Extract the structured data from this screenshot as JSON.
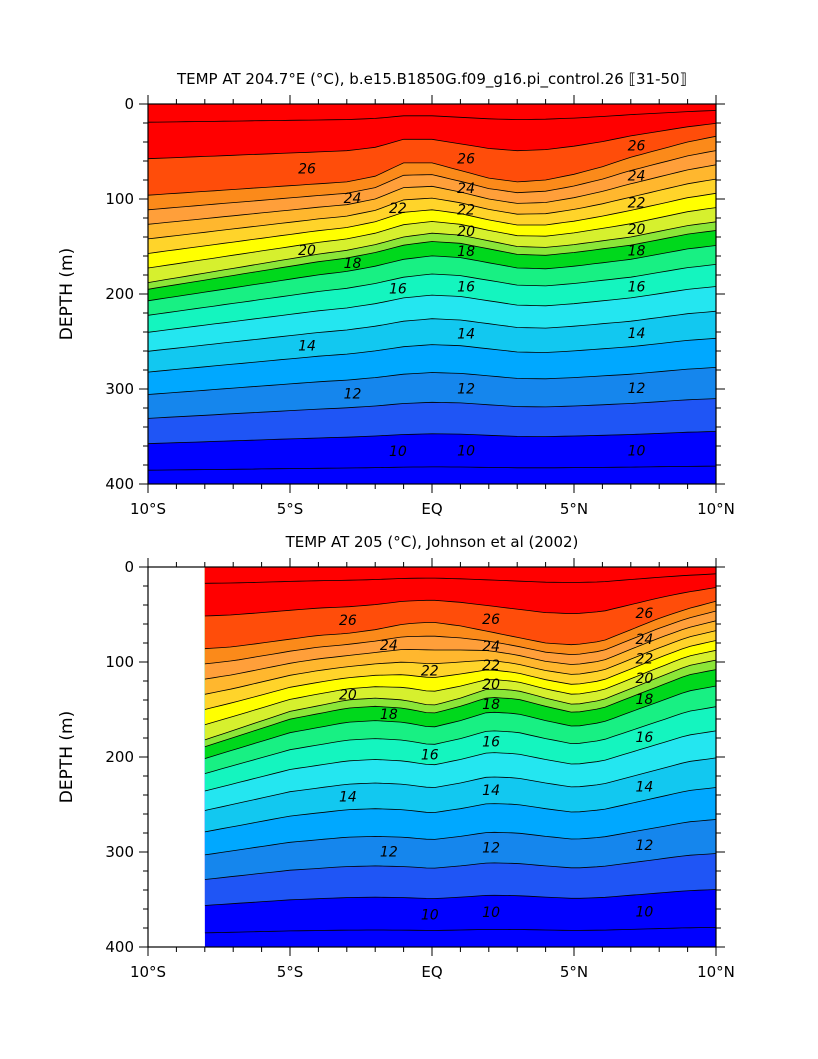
{
  "chart_data": [
    {
      "type": "contour",
      "title": "TEMP AT 204.7°E (°C), b.e15.B1850G.f09_g16.pi_control.26 ⟦31-50⟧",
      "xlabel": "",
      "ylabel": "DEPTH (m)",
      "x_tick_labels": [
        "10°S",
        "5°S",
        "EQ",
        "5°N",
        "10°N"
      ],
      "y_tick_labels": [
        "0",
        "100",
        "200",
        "300",
        "400"
      ],
      "xlim": [
        -10,
        10
      ],
      "ylim": [
        0,
        400
      ],
      "y_inverted": true,
      "contour_interval": 1,
      "contour_labels": [
        "26",
        "24",
        "22",
        "20",
        "18",
        "16",
        "14",
        "12",
        "10"
      ],
      "colormap": [
        "#0000ff",
        "#1f55f5",
        "#1586ed",
        "#00a8ff",
        "#12c8f0",
        "#24e6f0",
        "#14f5bf",
        "#18f083",
        "#00d81c",
        "#8be638",
        "#d6f02e",
        "#ffff00",
        "#ffd42a",
        "#ffb72e",
        "#ff9f3a",
        "#fb8a1a",
        "#ff4d0a",
        "#ff0000"
      ],
      "profile": {
        "x": [
          -10,
          -9,
          -8,
          -7,
          -6,
          -5,
          -4,
          -3,
          -2,
          -1,
          0,
          1,
          2,
          3,
          4,
          5,
          6,
          7,
          8,
          9,
          10
        ],
        "thermocline_depth_m": [
          188,
          183,
          178,
          173,
          168,
          163,
          158,
          154,
          148,
          140,
          136,
          138,
          144,
          150,
          151,
          148,
          144,
          140,
          134,
          128,
          124
        ],
        "mixed_layer_depth_m": [
          96,
          94,
          92,
          90,
          88,
          86,
          84,
          82,
          76,
          62,
          62,
          70,
          78,
          82,
          80,
          74,
          66,
          56,
          48,
          40,
          34
        ],
        "warm_core_x_range": [
          -10,
          -8
        ]
      }
    },
    {
      "type": "contour",
      "title": "TEMP AT 205 (°C), Johnson et al (2002)",
      "xlabel": "",
      "ylabel": "DEPTH (m)",
      "x_tick_labels": [
        "10°S",
        "5°S",
        "EQ",
        "5°N",
        "10°N"
      ],
      "y_tick_labels": [
        "0",
        "100",
        "200",
        "300",
        "400"
      ],
      "xlim": [
        -10,
        10
      ],
      "ylim": [
        0,
        400
      ],
      "y_inverted": true,
      "data_x_range": [
        -8,
        10
      ],
      "contour_interval": 1,
      "contour_labels": [
        "26",
        "24",
        "22",
        "20",
        "18",
        "16",
        "14",
        "12",
        "10"
      ],
      "colormap": [
        "#0000ff",
        "#1f55f5",
        "#1586ed",
        "#00a8ff",
        "#12c8f0",
        "#24e6f0",
        "#14f5bf",
        "#18f083",
        "#00d81c",
        "#8be638",
        "#d6f02e",
        "#ffff00",
        "#ffd42a",
        "#ffb72e",
        "#ff9f3a",
        "#fb8a1a",
        "#ff4d0a",
        "#ff0000"
      ],
      "profile": {
        "x": [
          -8,
          -7,
          -6,
          -5,
          -4,
          -3,
          -2,
          -1,
          0,
          1,
          2,
          3,
          4,
          5,
          6,
          7,
          8,
          9,
          10
        ],
        "thermocline_depth_m": [
          182,
          172,
          162,
          152,
          146,
          140,
          138,
          140,
          146,
          138,
          128,
          130,
          138,
          145,
          140,
          128,
          116,
          104,
          98
        ],
        "mixed_layer_depth_m": [
          86,
          84,
          80,
          76,
          72,
          70,
          66,
          60,
          58,
          62,
          68,
          74,
          80,
          82,
          78,
          66,
          54,
          44,
          36
        ],
        "warm_core_x_range": [
          -8,
          -5
        ]
      }
    }
  ]
}
